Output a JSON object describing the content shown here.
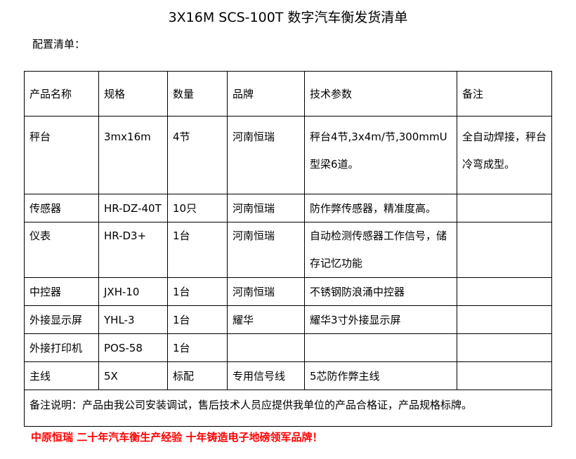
{
  "title": "3X16M SCS-100T 数字汽车衡发货清单",
  "subtitle": "配置清单：",
  "headers": [
    "产品名称",
    "规格",
    "数量",
    "品牌",
    "技术参数",
    "备注"
  ],
  "rows": [
    [
      "秤台",
      "3mx16m",
      "4节",
      "河南恒瑞",
      "秤台4节,3x4m/节,300mmU型梁6道。",
      "全自动焊接，秤台冷弯成型。"
    ],
    [
      "传感器",
      "HR-DZ-40T",
      "10只",
      "河南恒瑞",
      "防作弊传感器，精准度高。",
      ""
    ],
    [
      "仪表",
      "HR-D3+",
      "1台",
      "河南恒瑞",
      "自动检测传感器工作信号，储存记忆功能",
      ""
    ],
    [
      "中控器",
      "JXH-10",
      "1台",
      "河南恒瑞",
      "不锈钢防浪涌中控器",
      ""
    ],
    [
      "外接显示屏",
      "YHL-3",
      "1台",
      "耀华",
      "耀华3寸外接显示屏",
      ""
    ],
    [
      "外接打印机",
      "POS-58",
      "1台",
      "",
      "",
      ""
    ],
    [
      "主线",
      "5X",
      "标配",
      "专用信号线",
      "5芯防作弊主线",
      ""
    ]
  ],
  "note": "备注说明：产品由我公司安装调试，售后技术人员应提供我单位的产品合格证，产品规格标牌。",
  "slogan": "中原恒瑞 二十年汽车衡生产经验 十年铸造电子地磅领军品牌！",
  "colors": {
    "slogan": "#ff0000"
  }
}
